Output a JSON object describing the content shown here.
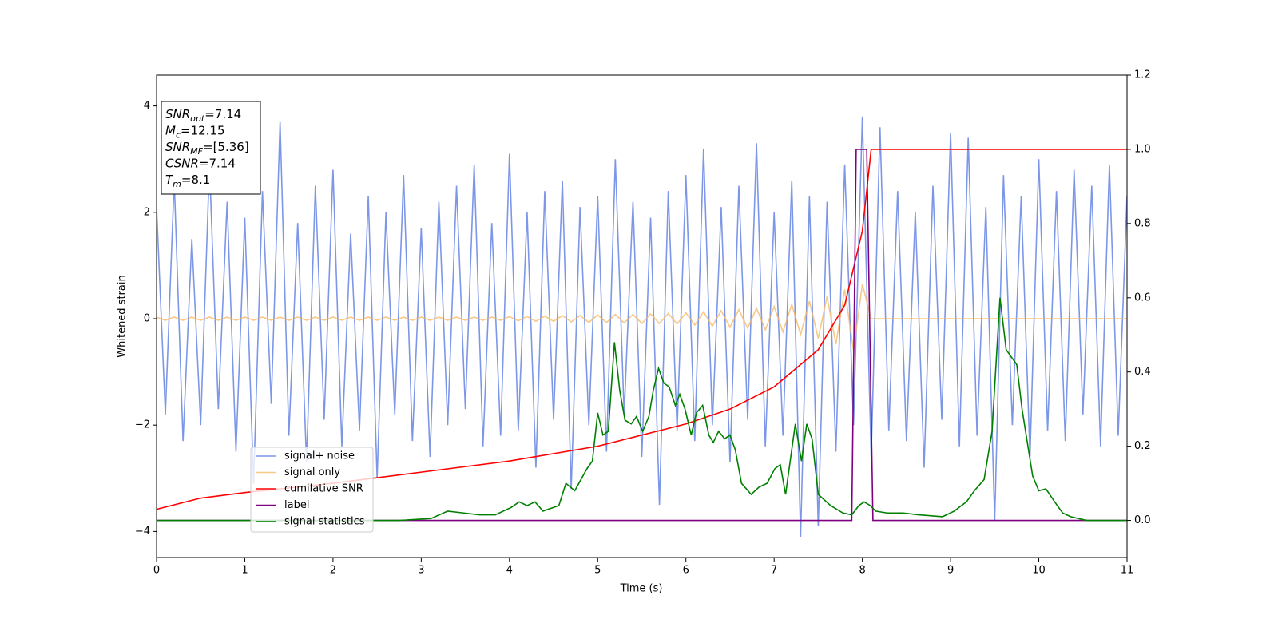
{
  "chart_data": {
    "type": "line",
    "xlabel": "Time (s)",
    "ylabel": "Whitened strain",
    "xlim": [
      0,
      11
    ],
    "xticks": [
      0,
      1,
      2,
      3,
      4,
      5,
      6,
      7,
      8,
      9,
      10,
      11
    ],
    "ylim": [
      -4.49,
      4.58
    ],
    "yticks": [
      {
        "value": -4,
        "label": "−4"
      },
      {
        "value": -2,
        "label": "−2"
      },
      0,
      2,
      4
    ],
    "y2lim": [
      -0.1,
      1.2
    ],
    "y2ticks": [
      {
        "value": 0,
        "label": "0.0"
      },
      0.2,
      0.4,
      0.6,
      0.8,
      {
        "value": 1,
        "label": "1.0"
      },
      1.2
    ],
    "legend": "lower left",
    "stats": [
      {
        "symbol": "SNR",
        "subscript": "opt",
        "value": "=7.14"
      },
      {
        "symbol": "M",
        "subscript": "c",
        "value": "=12.15"
      },
      {
        "symbol": "SNR",
        "subscript": "MF",
        "value": "=[5.36]"
      },
      {
        "symbol": "CSNR",
        "value": "=7.14"
      },
      {
        "symbol": "T",
        "subscript": "m",
        "value": "=8.1"
      }
    ],
    "series": [
      {
        "name": "signal+ noise",
        "color": "#6f8ce6",
        "opacity": 0.9,
        "x": [
          0,
          0.1,
          0.2,
          0.3,
          0.4,
          0.5,
          0.6,
          0.7,
          0.8,
          0.9,
          1,
          1.1,
          1.2,
          1.3,
          1.4,
          1.5,
          1.6,
          1.7,
          1.8,
          1.9,
          2,
          2.1,
          2.2,
          2.3,
          2.4,
          2.5,
          2.6,
          2.7,
          2.8,
          2.9,
          3,
          3.1,
          3.2,
          3.3,
          3.4,
          3.5,
          3.6,
          3.7,
          3.8,
          3.9,
          4,
          4.1,
          4.2,
          4.3,
          4.4,
          4.5,
          4.6,
          4.7,
          4.8,
          4.9,
          5,
          5.1,
          5.2,
          5.3,
          5.4,
          5.5,
          5.6,
          5.7,
          5.8,
          5.9,
          6,
          6.1,
          6.2,
          6.3,
          6.4,
          6.5,
          6.6,
          6.7,
          6.8,
          6.9,
          7,
          7.1,
          7.2,
          7.3,
          7.4,
          7.5,
          7.6,
          7.7,
          7.8,
          7.9,
          8,
          8.1,
          8.2,
          8.3,
          8.4,
          8.5,
          8.6,
          8.7,
          8.8,
          8.9,
          9,
          9.1,
          9.2,
          9.3,
          9.4,
          9.5,
          9.6,
          9.7,
          9.8,
          9.9,
          10,
          10.1,
          10.2,
          10.3,
          10.4,
          10.5,
          10.6,
          10.7,
          10.8,
          10.9,
          11
        ],
        "values": [
          2.1,
          -1.8,
          2.6,
          -2.3,
          1.5,
          -2.0,
          2.9,
          -1.7,
          2.2,
          -2.5,
          1.9,
          -3.1,
          2.4,
          -1.6,
          3.7,
          -2.2,
          1.8,
          -2.7,
          2.5,
          -1.9,
          2.8,
          -2.4,
          1.6,
          -2.1,
          2.3,
          -3.0,
          2.0,
          -1.8,
          2.7,
          -2.3,
          1.7,
          -2.6,
          2.2,
          -2.0,
          2.5,
          -1.7,
          2.9,
          -2.4,
          1.8,
          -2.2,
          3.1,
          -2.1,
          2.0,
          -2.8,
          2.4,
          -1.9,
          2.6,
          -3.2,
          2.1,
          -2.0,
          2.3,
          -2.5,
          3.0,
          -1.8,
          2.2,
          -2.6,
          1.9,
          -3.5,
          2.4,
          -2.1,
          2.7,
          -2.3,
          3.2,
          -2.0,
          2.1,
          -2.7,
          2.5,
          -1.9,
          3.3,
          -2.4,
          2.0,
          -2.2,
          2.6,
          -4.1,
          2.3,
          -3.9,
          2.2,
          -2.5,
          2.9,
          -2.0,
          3.8,
          -2.6,
          3.6,
          -2.1,
          2.4,
          -2.3,
          2.0,
          -2.8,
          2.5,
          -1.9,
          3.5,
          -2.4,
          3.4,
          -2.2,
          2.1,
          -3.8,
          2.7,
          -2.0,
          2.3,
          -2.6,
          3.0,
          -2.1,
          2.4,
          -2.3,
          2.8,
          -1.8,
          2.5,
          -2.4,
          2.9,
          -2.2,
          2.3
        ]
      },
      {
        "name": "signal only",
        "color": "#f5b55f",
        "opacity": 0.75,
        "x": [
          0,
          0.1,
          0.2,
          0.3,
          0.4,
          0.5,
          0.6,
          0.7,
          0.8,
          0.9,
          1,
          1.1,
          1.2,
          1.3,
          1.4,
          1.5,
          1.6,
          1.7,
          1.8,
          1.9,
          2,
          2.1,
          2.2,
          2.3,
          2.4,
          2.5,
          2.6,
          2.7,
          2.8,
          2.9,
          3,
          3.1,
          3.2,
          3.3,
          3.4,
          3.5,
          3.6,
          3.7,
          3.8,
          3.9,
          4,
          4.1,
          4.2,
          4.3,
          4.4,
          4.5,
          4.6,
          4.7,
          4.8,
          4.9,
          5,
          5.1,
          5.2,
          5.3,
          5.4,
          5.5,
          5.6,
          5.7,
          5.8,
          5.9,
          6,
          6.1,
          6.2,
          6.3,
          6.4,
          6.5,
          6.6,
          6.7,
          6.8,
          6.9,
          7,
          7.1,
          7.2,
          7.3,
          7.4,
          7.5,
          7.6,
          7.7,
          7.8,
          7.9,
          8,
          8.1,
          8.2,
          8.3,
          8.4,
          8.5,
          8.6,
          8.7,
          8.8,
          8.9,
          9,
          9.1,
          9.2,
          9.3,
          9.4,
          9.5,
          9.6,
          9.7,
          9.8,
          9.9,
          10,
          10.1,
          10.2,
          10.3,
          10.4,
          10.5,
          10.6,
          10.7,
          10.8,
          10.9,
          11
        ],
        "values": [
          0.03,
          -0.03,
          0.03,
          -0.03,
          0.03,
          -0.03,
          0.03,
          -0.03,
          0.03,
          -0.03,
          0.03,
          -0.03,
          0.03,
          -0.03,
          0.03,
          -0.03,
          0.03,
          -0.03,
          0.03,
          -0.03,
          0.03,
          -0.03,
          0.03,
          -0.03,
          0.03,
          -0.03,
          0.03,
          -0.03,
          0.03,
          -0.03,
          0.03,
          -0.03,
          0.03,
          -0.03,
          0.03,
          -0.03,
          0.03,
          -0.03,
          0.03,
          -0.03,
          0.04,
          -0.04,
          0.04,
          -0.05,
          0.05,
          -0.05,
          0.06,
          -0.06,
          0.06,
          -0.07,
          0.07,
          -0.07,
          0.08,
          -0.08,
          0.08,
          -0.09,
          0.09,
          -0.09,
          0.1,
          -0.1,
          0.11,
          -0.12,
          0.13,
          -0.14,
          0.15,
          -0.16,
          0.17,
          -0.18,
          0.2,
          -0.21,
          0.23,
          -0.25,
          0.27,
          -0.3,
          0.33,
          -0.37,
          0.42,
          -0.48,
          0.55,
          -0.6,
          0.65,
          0,
          0,
          0,
          0,
          0,
          0,
          0,
          0,
          0,
          0,
          0,
          0,
          0,
          0,
          0,
          0,
          0,
          0,
          0,
          0,
          0,
          0,
          0,
          0,
          0,
          0,
          0,
          0,
          0,
          0
        ]
      },
      {
        "name": "cumilative SNR",
        "color": "#ff0000",
        "axis": "y2",
        "x": [
          0,
          0.5,
          1,
          2,
          3,
          4,
          5,
          6,
          6.5,
          7,
          7.5,
          7.8,
          8,
          8.1,
          11
        ],
        "values": [
          0.03,
          0.06,
          0.075,
          0.1,
          0.13,
          0.16,
          0.2,
          0.26,
          0.3,
          0.36,
          0.46,
          0.58,
          0.78,
          1.0,
          1.0
        ]
      },
      {
        "name": "label",
        "color": "#800080",
        "axis": "y2",
        "x": [
          0,
          7.88,
          7.93,
          8.05,
          8.12,
          11
        ],
        "values": [
          0,
          0,
          1,
          1,
          0,
          0
        ]
      },
      {
        "name": "signal statistics",
        "color": "#008000",
        "axis": "y2",
        "x": [
          0,
          2.75,
          3.11,
          3.3,
          3.48,
          3.66,
          3.84,
          4.02,
          4.11,
          4.2,
          4.29,
          4.38,
          4.56,
          4.64,
          4.74,
          4.88,
          4.94,
          5.0,
          5.06,
          5.12,
          5.19,
          5.25,
          5.31,
          5.38,
          5.44,
          5.51,
          5.58,
          5.63,
          5.69,
          5.75,
          5.81,
          5.88,
          5.93,
          5.99,
          6.06,
          6.12,
          6.19,
          6.26,
          6.31,
          6.37,
          6.44,
          6.5,
          6.56,
          6.63,
          6.74,
          6.83,
          6.92,
          7.01,
          7.07,
          7.13,
          7.24,
          7.31,
          7.37,
          7.43,
          7.5,
          7.64,
          7.78,
          7.88,
          7.96,
          8.02,
          8.09,
          8.15,
          8.28,
          8.46,
          8.64,
          8.91,
          9.04,
          9.18,
          9.27,
          9.38,
          9.47,
          9.56,
          9.63,
          9.75,
          9.81,
          9.93,
          10.0,
          10.08,
          10.18,
          10.27,
          10.36,
          10.54,
          11
        ],
        "values": [
          0,
          0,
          0.005,
          0.025,
          0.02,
          0.015,
          0.015,
          0.035,
          0.05,
          0.04,
          0.05,
          0.025,
          0.04,
          0.1,
          0.08,
          0.14,
          0.16,
          0.29,
          0.23,
          0.24,
          0.48,
          0.35,
          0.27,
          0.26,
          0.28,
          0.24,
          0.28,
          0.35,
          0.41,
          0.37,
          0.36,
          0.31,
          0.34,
          0.3,
          0.23,
          0.29,
          0.31,
          0.23,
          0.21,
          0.24,
          0.22,
          0.23,
          0.19,
          0.1,
          0.07,
          0.09,
          0.1,
          0.14,
          0.15,
          0.07,
          0.26,
          0.16,
          0.26,
          0.22,
          0.07,
          0.04,
          0.02,
          0.015,
          0.04,
          0.05,
          0.04,
          0.025,
          0.02,
          0.02,
          0.015,
          0.01,
          0.025,
          0.05,
          0.08,
          0.11,
          0.24,
          0.6,
          0.46,
          0.42,
          0.3,
          0.12,
          0.08,
          0.085,
          0.05,
          0.02,
          0.01,
          0,
          0
        ]
      }
    ]
  }
}
